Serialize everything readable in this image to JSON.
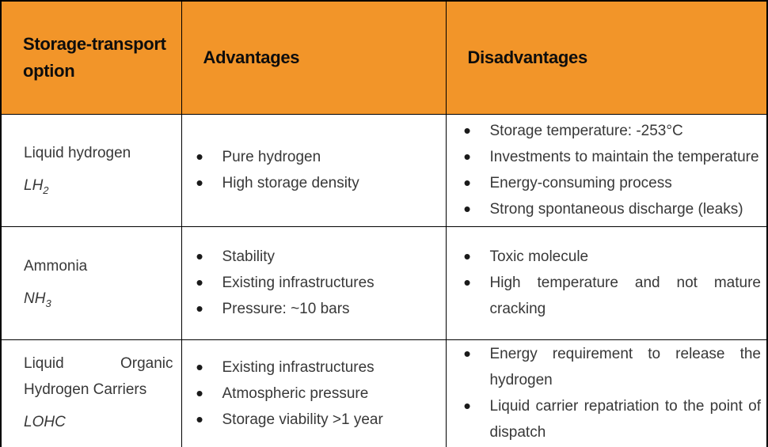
{
  "table": {
    "headers": [
      "Storage-transport option",
      "Advantages",
      "Disadvantages"
    ],
    "rows": [
      {
        "option": "Liquid hydrogen",
        "formula_base": "LH",
        "formula_sub": "2",
        "advantages": [
          "Pure hydrogen",
          "High storage density"
        ],
        "disadvantages": [
          "Storage temperature: -253°C",
          "Investments to maintain the temperature",
          "Energy-consuming process",
          "Strong spontaneous discharge (leaks)"
        ]
      },
      {
        "option": "Ammonia",
        "formula_base": "NH",
        "formula_sub": "3",
        "advantages": [
          "Stability",
          "Existing infrastructures",
          "Pressure: ~10 bars"
        ],
        "disadvantages": [
          "Toxic molecule",
          "High temperature and not mature cracking"
        ]
      },
      {
        "option": "Liquid Organic Hydrogen Carriers",
        "formula_base": "LOHC",
        "formula_sub": "",
        "advantages": [
          "Existing infrastructures",
          "Atmospheric pressure",
          "Storage viability >1 year"
        ],
        "disadvantages": [
          "Energy requirement to release the hydrogen",
          "Liquid carrier repatriation to the point of dispatch"
        ]
      }
    ]
  },
  "colors": {
    "header_bg": "#F29529",
    "border": "#000000",
    "header_text": "#0D0D0D",
    "body_text": "#383838"
  }
}
